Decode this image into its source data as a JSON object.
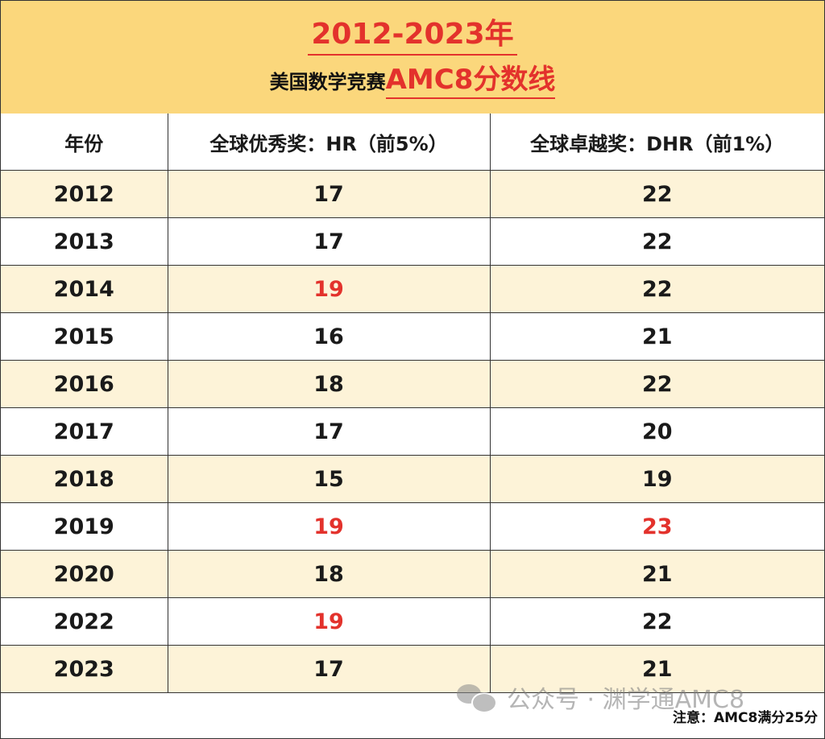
{
  "title": {
    "line1": "2012-2023年",
    "line2_prefix": "美国数学竞赛",
    "line2_highlight": "AMC8分数线"
  },
  "table": {
    "headers": [
      "年份",
      "全球优秀奖：HR（前5%）",
      "全球卓越奖：DHR（前1%）"
    ],
    "rows": [
      {
        "year": "2012",
        "hr": "17",
        "dhr": "22",
        "hr_highlight": false,
        "dhr_highlight": false
      },
      {
        "year": "2013",
        "hr": "17",
        "dhr": "22",
        "hr_highlight": false,
        "dhr_highlight": false
      },
      {
        "year": "2014",
        "hr": "19",
        "dhr": "22",
        "hr_highlight": true,
        "dhr_highlight": false
      },
      {
        "year": "2015",
        "hr": "16",
        "dhr": "21",
        "hr_highlight": false,
        "dhr_highlight": false
      },
      {
        "year": "2016",
        "hr": "18",
        "dhr": "22",
        "hr_highlight": false,
        "dhr_highlight": false
      },
      {
        "year": "2017",
        "hr": "17",
        "dhr": "20",
        "hr_highlight": false,
        "dhr_highlight": false
      },
      {
        "year": "2018",
        "hr": "15",
        "dhr": "19",
        "hr_highlight": false,
        "dhr_highlight": false
      },
      {
        "year": "2019",
        "hr": "19",
        "dhr": "23",
        "hr_highlight": true,
        "dhr_highlight": true
      },
      {
        "year": "2020",
        "hr": "18",
        "dhr": "21",
        "hr_highlight": false,
        "dhr_highlight": false
      },
      {
        "year": "2022",
        "hr": "19",
        "dhr": "22",
        "hr_highlight": true,
        "dhr_highlight": false
      },
      {
        "year": "2023",
        "hr": "17",
        "dhr": "21",
        "hr_highlight": false,
        "dhr_highlight": false
      }
    ]
  },
  "footnote": "注意：AMC8满分25分",
  "watermark": {
    "icon": "wechat-icon",
    "text": "公众号 · 渊学通AMC8"
  },
  "colors": {
    "header_bg": "#fbd77c",
    "stripe_bg": "#fdf3d8",
    "highlight": "#e3322c"
  }
}
